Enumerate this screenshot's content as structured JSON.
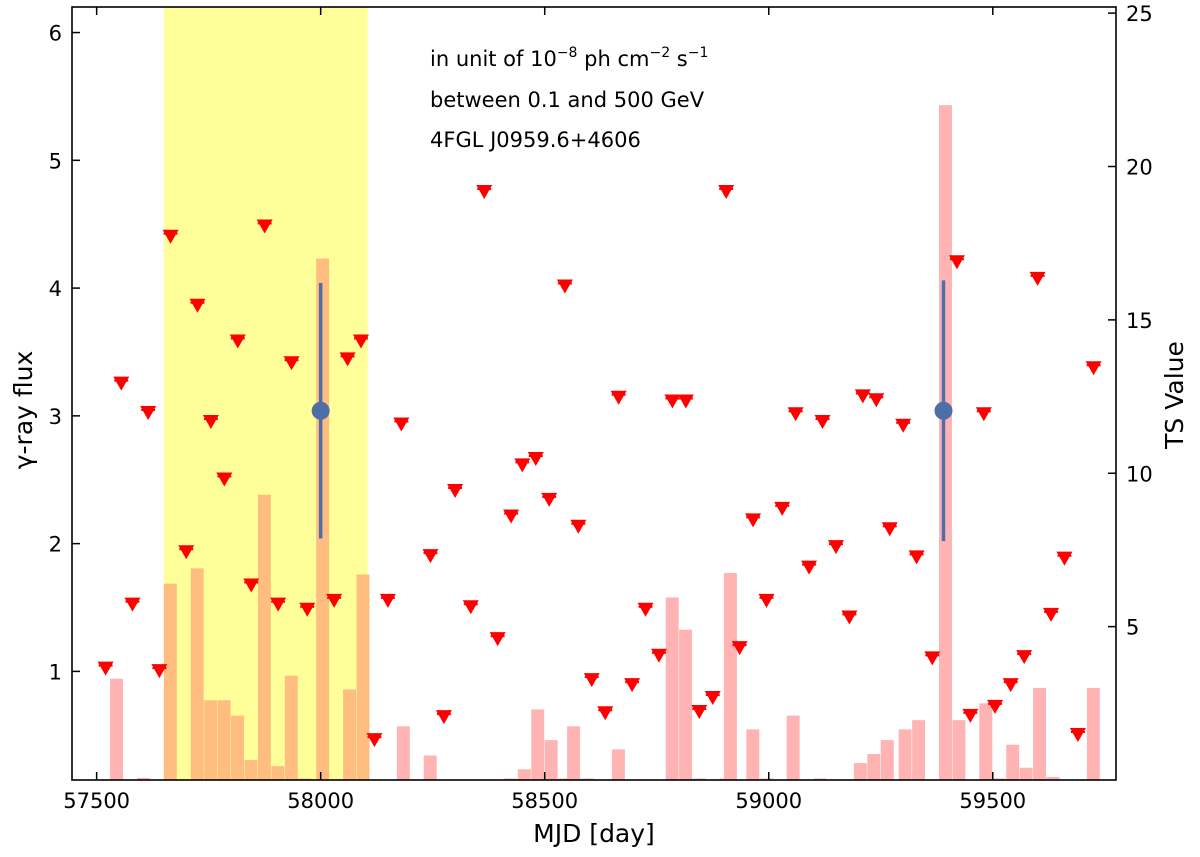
{
  "chart_data": {
    "type": "scatter",
    "xlabel": "MJD [day]",
    "ylabel_left": "γ-ray flux",
    "ylabel_right": "TS Value",
    "xlim": [
      57445,
      59775
    ],
    "ylim_left": [
      0.15,
      6.2
    ],
    "ylim_right": [
      0,
      25.2
    ],
    "x_ticks": [
      57500,
      58000,
      58500,
      59000,
      59500
    ],
    "y_ticks_left": [
      1,
      2,
      3,
      4,
      5,
      6
    ],
    "y_ticks_right": [
      5,
      10,
      15,
      20,
      25
    ],
    "annotations": {
      "unit_prefix": "in unit of 10",
      "unit_exp1": "−8",
      "unit_mid": " ph cm",
      "unit_exp2": "−2",
      "unit_mid2": " s",
      "unit_exp3": "−1",
      "energy_range": "between 0.1 and 500 GeV",
      "source": "4FGL J0959.6+4606"
    },
    "highlight_region": {
      "x_start": 57650,
      "x_end": 58105,
      "color": "#ffff99"
    },
    "colors": {
      "upper_limit": "#ff0000",
      "detection": "#4c6fa8",
      "ts_bar": "#ffb3b3",
      "ts_bar_in_region": "#ffbe80"
    },
    "detections": [
      {
        "x": 58000,
        "y": 3.04,
        "yerr_low": 1.0,
        "yerr_high": 1.0
      },
      {
        "x": 59390,
        "y": 3.04,
        "yerr_low": 1.02,
        "yerr_high": 1.02
      }
    ],
    "upper_limits": [
      {
        "x": 57520,
        "y": 1.03
      },
      {
        "x": 57555,
        "y": 3.26
      },
      {
        "x": 57580,
        "y": 1.53
      },
      {
        "x": 57615,
        "y": 3.03
      },
      {
        "x": 57640,
        "y": 1.01
      },
      {
        "x": 57665,
        "y": 4.41
      },
      {
        "x": 57700,
        "y": 1.94
      },
      {
        "x": 57725,
        "y": 3.87
      },
      {
        "x": 57755,
        "y": 2.96
      },
      {
        "x": 57785,
        "y": 2.51
      },
      {
        "x": 57815,
        "y": 3.59
      },
      {
        "x": 57845,
        "y": 1.68
      },
      {
        "x": 57875,
        "y": 4.49
      },
      {
        "x": 57905,
        "y": 1.53
      },
      {
        "x": 57935,
        "y": 3.42
      },
      {
        "x": 57970,
        "y": 1.49
      },
      {
        "x": 58030,
        "y": 1.56
      },
      {
        "x": 58060,
        "y": 3.45
      },
      {
        "x": 58090,
        "y": 3.59
      },
      {
        "x": 58120,
        "y": 0.47
      },
      {
        "x": 58150,
        "y": 1.56
      },
      {
        "x": 58180,
        "y": 2.94
      },
      {
        "x": 58245,
        "y": 1.91
      },
      {
        "x": 58275,
        "y": 0.65
      },
      {
        "x": 58300,
        "y": 2.42
      },
      {
        "x": 58335,
        "y": 1.51
      },
      {
        "x": 58365,
        "y": 4.76
      },
      {
        "x": 58395,
        "y": 1.26
      },
      {
        "x": 58425,
        "y": 2.22
      },
      {
        "x": 58450,
        "y": 2.62
      },
      {
        "x": 58480,
        "y": 2.67
      },
      {
        "x": 58510,
        "y": 2.35
      },
      {
        "x": 58545,
        "y": 4.02
      },
      {
        "x": 58575,
        "y": 2.14
      },
      {
        "x": 58605,
        "y": 0.94
      },
      {
        "x": 58635,
        "y": 0.68
      },
      {
        "x": 58665,
        "y": 3.15
      },
      {
        "x": 58695,
        "y": 0.9
      },
      {
        "x": 58725,
        "y": 1.49
      },
      {
        "x": 58755,
        "y": 1.13
      },
      {
        "x": 58785,
        "y": 3.12
      },
      {
        "x": 58815,
        "y": 3.12
      },
      {
        "x": 58845,
        "y": 0.69
      },
      {
        "x": 58875,
        "y": 0.8
      },
      {
        "x": 58905,
        "y": 4.76
      },
      {
        "x": 58935,
        "y": 1.19
      },
      {
        "x": 58965,
        "y": 2.19
      },
      {
        "x": 58995,
        "y": 1.56
      },
      {
        "x": 59030,
        "y": 2.28
      },
      {
        "x": 59060,
        "y": 3.02
      },
      {
        "x": 59090,
        "y": 1.82
      },
      {
        "x": 59120,
        "y": 2.96
      },
      {
        "x": 59150,
        "y": 1.98
      },
      {
        "x": 59180,
        "y": 1.43
      },
      {
        "x": 59210,
        "y": 3.16
      },
      {
        "x": 59240,
        "y": 3.13
      },
      {
        "x": 59270,
        "y": 2.12
      },
      {
        "x": 59300,
        "y": 2.93
      },
      {
        "x": 59330,
        "y": 1.9
      },
      {
        "x": 59365,
        "y": 1.11
      },
      {
        "x": 59420,
        "y": 4.21
      },
      {
        "x": 59450,
        "y": 0.66
      },
      {
        "x": 59480,
        "y": 3.02
      },
      {
        "x": 59505,
        "y": 0.73
      },
      {
        "x": 59540,
        "y": 0.9
      },
      {
        "x": 59570,
        "y": 1.12
      },
      {
        "x": 59600,
        "y": 4.08
      },
      {
        "x": 59630,
        "y": 1.45
      },
      {
        "x": 59660,
        "y": 1.89
      },
      {
        "x": 59690,
        "y": 0.51
      },
      {
        "x": 59725,
        "y": 3.38
      }
    ],
    "ts_bins": {
      "x_start": 57530,
      "x_end": 59740,
      "bin_width": 30,
      "values": [
        0,
        3.3,
        0,
        0.07,
        0,
        0,
        6.4,
        0,
        6.9,
        2.6,
        2.6,
        2.1,
        0.65,
        9.3,
        0.45,
        3.4,
        0.05,
        0,
        17,
        0,
        2.95,
        6.7,
        0,
        0,
        0,
        1.75,
        0,
        0.8,
        0,
        0,
        0,
        0,
        0,
        0,
        0,
        0,
        0.05,
        0.35,
        2.3,
        1.3,
        0.05,
        1.75,
        0.05,
        0,
        0,
        0,
        0,
        1.0,
        0,
        0,
        0,
        0,
        0,
        0,
        0,
        5.95,
        4.9,
        0.05,
        0,
        0.05,
        6.75,
        0,
        0,
        1.65,
        0.05,
        0,
        0,
        0,
        0,
        0,
        0,
        0,
        1.65,
        0.07,
        0.02,
        0,
        0.13,
        0,
        0,
        0,
        0,
        0,
        0,
        0,
        0,
        0,
        0,
        0,
        0,
        0,
        0,
        0,
        0,
        0,
        0,
        0,
        0,
        0,
        0,
        0
      ]
    },
    "ts_bars": [
      {
        "x": 57545,
        "ts": 3.3
      },
      {
        "x": 57605,
        "ts": 0.07
      },
      {
        "x": 57665,
        "ts": 6.4
      },
      {
        "x": 57725,
        "ts": 6.9
      },
      {
        "x": 57755,
        "ts": 2.6
      },
      {
        "x": 57785,
        "ts": 2.6
      },
      {
        "x": 57815,
        "ts": 2.1
      },
      {
        "x": 57845,
        "ts": 0.65
      },
      {
        "x": 57875,
        "ts": 9.3
      },
      {
        "x": 57905,
        "ts": 0.45
      },
      {
        "x": 57935,
        "ts": 3.4
      },
      {
        "x": 57965,
        "ts": 0.05
      },
      {
        "x": 58005,
        "ts": 17.0
      },
      {
        "x": 58065,
        "ts": 2.95
      },
      {
        "x": 58095,
        "ts": 6.7
      },
      {
        "x": 58185,
        "ts": 1.75
      },
      {
        "x": 58245,
        "ts": 0.8
      },
      {
        "x": 58425,
        "ts": 0.05
      },
      {
        "x": 58455,
        "ts": 0.35
      },
      {
        "x": 58485,
        "ts": 2.3
      },
      {
        "x": 58515,
        "ts": 1.3
      },
      {
        "x": 58545,
        "ts": 0.05
      },
      {
        "x": 58565,
        "ts": 1.75
      },
      {
        "x": 58595,
        "ts": 0.05
      },
      {
        "x": 58665,
        "ts": 1.0
      },
      {
        "x": 58785,
        "ts": 5.95
      },
      {
        "x": 58815,
        "ts": 4.9
      },
      {
        "x": 58845,
        "ts": 0.05
      },
      {
        "x": 58905,
        "ts": 0.05
      },
      {
        "x": 58915,
        "ts": 6.75
      },
      {
        "x": 58965,
        "ts": 1.65
      },
      {
        "x": 58995,
        "ts": 0.05
      },
      {
        "x": 59055,
        "ts": 2.1
      },
      {
        "x": 59115,
        "ts": 0.05
      },
      {
        "x": 59205,
        "ts": 0.55
      },
      {
        "x": 59235,
        "ts": 0.85
      },
      {
        "x": 59265,
        "ts": 1.3
      },
      {
        "x": 59305,
        "ts": 1.65
      },
      {
        "x": 59335,
        "ts": 1.95
      },
      {
        "x": 59395,
        "ts": 22.0
      },
      {
        "x": 59425,
        "ts": 1.95
      },
      {
        "x": 59485,
        "ts": 2.5
      },
      {
        "x": 59515,
        "ts": 0.05
      },
      {
        "x": 59545,
        "ts": 1.15
      },
      {
        "x": 59575,
        "ts": 0.4
      },
      {
        "x": 59605,
        "ts": 3.0
      },
      {
        "x": 59635,
        "ts": 0.1
      },
      {
        "x": 59725,
        "ts": 3.0
      }
    ]
  }
}
